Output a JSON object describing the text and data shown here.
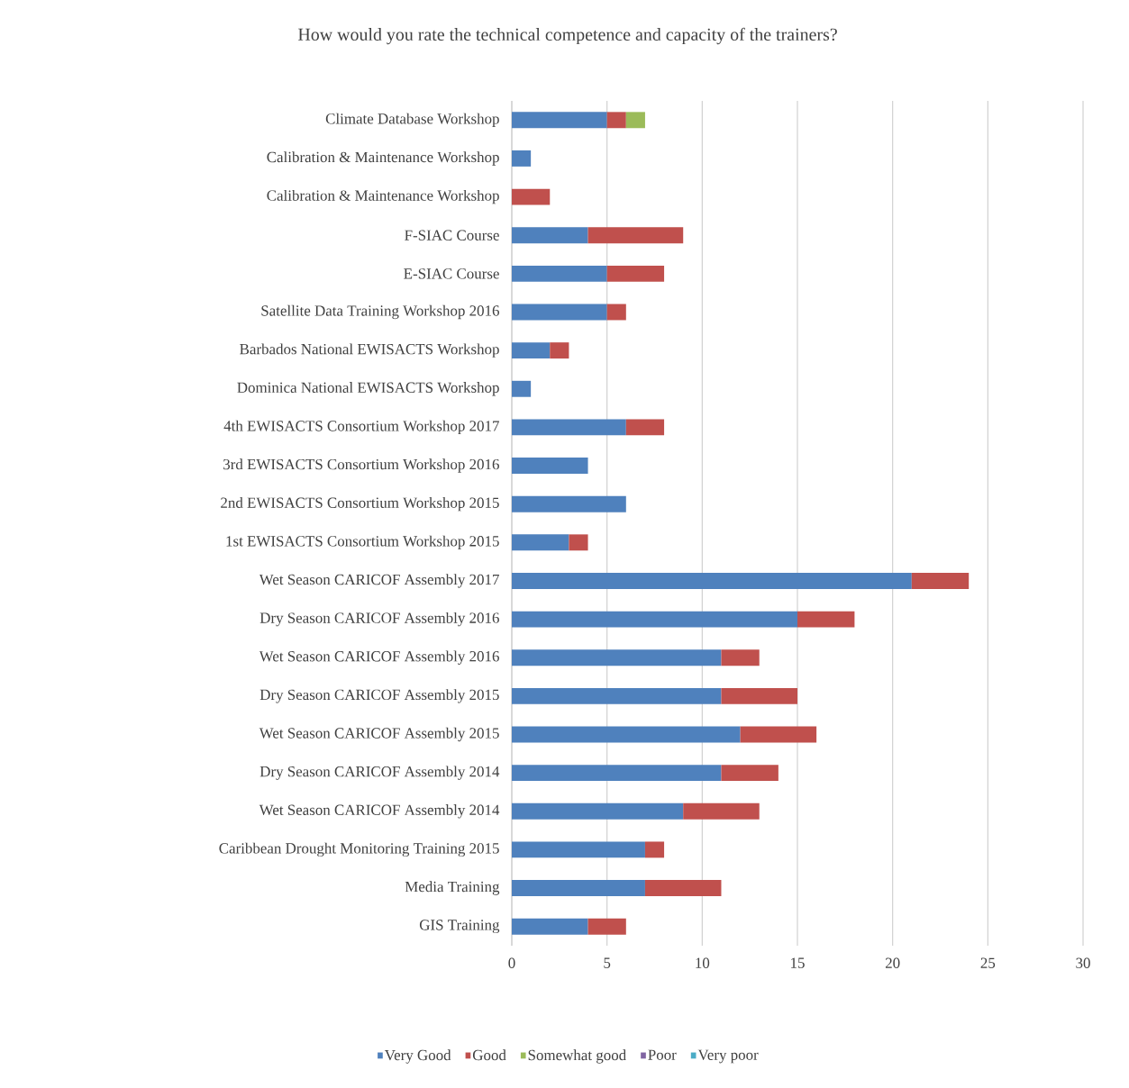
{
  "chart_data": {
    "type": "bar",
    "orientation": "horizontal",
    "stacked": true,
    "title": "How would you rate the technical competence and capacity of the trainers?",
    "categories": [
      "Climate Database Workshop",
      "Calibration & Maintenance Workshop",
      "Calibration & Maintenance Workshop",
      "F-SIAC Course",
      "E-SIAC Course",
      "Satellite Data Training Workshop 2016",
      "Barbados National EWISACTS Workshop",
      "Dominica National EWISACTS Workshop",
      "4th EWISACTS Consortium Workshop 2017",
      "3rd EWISACTS Consortium Workshop 2016",
      "2nd EWISACTS Consortium Workshop 2015",
      "1st EWISACTS Consortium Workshop 2015",
      "Wet Season CARICOF Assembly 2017",
      "Dry Season CARICOF Assembly 2016",
      "Wet Season CARICOF Assembly 2016",
      "Dry Season CARICOF Assembly 2015",
      "Wet Season CARICOF Assembly 2015",
      "Dry Season CARICOF Assembly 2014",
      "Wet Season CARICOF Assembly 2014",
      "Caribbean Drought Monitoring Training 2015",
      "Media Training",
      "GIS Training"
    ],
    "series": [
      {
        "name": "Very Good",
        "color": "#4f81bd",
        "values": [
          5,
          1,
          0,
          4,
          5,
          5,
          2,
          1,
          6,
          4,
          6,
          3,
          21,
          15,
          11,
          11,
          12,
          11,
          9,
          7,
          7,
          4
        ]
      },
      {
        "name": "Good",
        "color": "#c0504d",
        "values": [
          1,
          0,
          2,
          5,
          3,
          1,
          1,
          0,
          2,
          0,
          0,
          1,
          3,
          3,
          2,
          4,
          4,
          3,
          4,
          1,
          4,
          2
        ]
      },
      {
        "name": "Somewhat good",
        "color": "#9bbb59",
        "values": [
          1,
          0,
          0,
          0,
          0,
          0,
          0,
          0,
          0,
          0,
          0,
          0,
          0,
          0,
          0,
          0,
          0,
          0,
          0,
          0,
          0,
          0
        ]
      },
      {
        "name": "Poor",
        "color": "#8064a2",
        "values": [
          0,
          0,
          0,
          0,
          0,
          0,
          0,
          0,
          0,
          0,
          0,
          0,
          0,
          0,
          0,
          0,
          0,
          0,
          0,
          0,
          0,
          0
        ]
      },
      {
        "name": "Very poor",
        "color": "#4bacc6",
        "values": [
          0,
          0,
          0,
          0,
          0,
          0,
          0,
          0,
          0,
          0,
          0,
          0,
          0,
          0,
          0,
          0,
          0,
          0,
          0,
          0,
          0,
          0
        ]
      }
    ],
    "xlim": [
      0,
      30
    ],
    "xticks": [
      0,
      5,
      10,
      15,
      20,
      25,
      30
    ],
    "grid": "x",
    "legend": "bottom"
  }
}
